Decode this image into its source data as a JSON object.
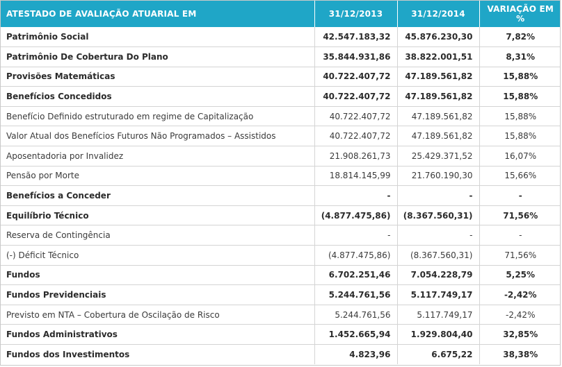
{
  "header": {
    "col1": "ATESTADO DE AVALIAÇÃO ATUARIAL EM",
    "col2": "31/12/2013",
    "col3": "31/12/2014",
    "col4": "VARIAÇÃO EM %"
  },
  "accent_color": "#1fa6c7",
  "rows": [
    {
      "label": "Patrimônio Social",
      "v2013": "42.547.183,32",
      "v2014": "45.876.230,30",
      "var": "7,82%",
      "bold": true
    },
    {
      "label": "Patrimônio De Cobertura Do Plano",
      "v2013": "35.844.931,86",
      "v2014": "38.822.001,51",
      "var": "8,31%",
      "bold": true
    },
    {
      "label": "Provisões Matemáticas",
      "v2013": "40.722.407,72",
      "v2014": "47.189.561,82",
      "var": "15,88%",
      "bold": true
    },
    {
      "label": "Benefícios Concedidos",
      "v2013": "40.722.407,72",
      "v2014": "47.189.561,82",
      "var": "15,88%",
      "bold": true
    },
    {
      "label": "Benefício Definido estruturado em regime de Capitalização",
      "v2013": "40.722.407,72",
      "v2014": "47.189.561,82",
      "var": "15,88%",
      "bold": false
    },
    {
      "label": "Valor Atual dos Benefícios Futuros Não Programados – Assistidos",
      "v2013": "40.722.407,72",
      "v2014": "47.189.561,82",
      "var": "15,88%",
      "bold": false
    },
    {
      "label": "Aposentadoria por Invalidez",
      "v2013": "21.908.261,73",
      "v2014": "25.429.371,52",
      "var": "16,07%",
      "bold": false
    },
    {
      "label": "Pensão por Morte",
      "v2013": "18.814.145,99",
      "v2014": "21.760.190,30",
      "var": "15,66%",
      "bold": false
    },
    {
      "label": "Benefícios a Conceder",
      "v2013": "-",
      "v2014": "-",
      "var": "-",
      "bold": true
    },
    {
      "label": "Equilíbrio Técnico",
      "v2013": "(4.877.475,86)",
      "v2014": "(8.367.560,31)",
      "var": "71,56%",
      "bold": true
    },
    {
      "label": "Reserva de Contingência",
      "v2013": "-",
      "v2014": "-",
      "var": "-",
      "bold": false
    },
    {
      "label": "(-) Déficit Técnico",
      "v2013": "(4.877.475,86)",
      "v2014": "(8.367.560,31)",
      "var": "71,56%",
      "bold": false
    },
    {
      "label": "Fundos",
      "v2013": "6.702.251,46",
      "v2014": "7.054.228,79",
      "var": "5,25%",
      "bold": true
    },
    {
      "label": "Fundos Previdenciais",
      "v2013": "5.244.761,56",
      "v2014": "5.117.749,17",
      "var": "-2,42%",
      "bold": true
    },
    {
      "label": "Previsto em NTA – Cobertura de Oscilação de Risco",
      "v2013": "5.244.761,56",
      "v2014": "5.117.749,17",
      "var": "-2,42%",
      "bold": false
    },
    {
      "label": "Fundos Administrativos",
      "v2013": "1.452.665,94",
      "v2014": "1.929.804,40",
      "var": "32,85%",
      "bold": true
    },
    {
      "label": "Fundos dos Investimentos",
      "v2013": "4.823,96",
      "v2014": "6.675,22",
      "var": "38,38%",
      "bold": true
    }
  ]
}
